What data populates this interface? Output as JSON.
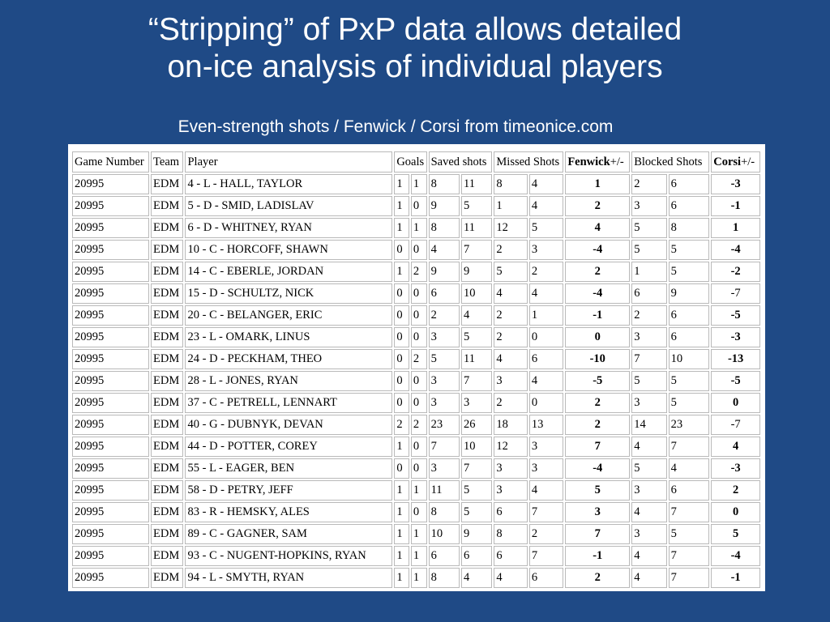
{
  "slide": {
    "title_line1": "“Stripping” of PxP data allows detailed",
    "title_line2": "on-ice analysis of individual players",
    "subtitle": "Even-strength shots / Fenwick / Corsi from timeonice.com"
  },
  "table": {
    "headers": {
      "game_number": "Game Number",
      "team": "Team",
      "player": "Player",
      "goals": "Goals",
      "saved_shots": "Saved shots",
      "missed_shots": "Missed Shots",
      "fenwick_bold": "Fenwick",
      "fenwick_suffix": "+/-",
      "blocked_shots": "Blocked Shots",
      "corsi_bold": "Corsi",
      "corsi_suffix": "+/-"
    },
    "rows": [
      [
        "20995",
        "EDM",
        "4 - L - HALL, TAYLOR",
        "1",
        "1",
        "8",
        "11",
        "8",
        "4",
        "1",
        "2",
        "6",
        "-3"
      ],
      [
        "20995",
        "EDM",
        "5 - D - SMID, LADISLAV",
        "1",
        "0",
        "9",
        "5",
        "1",
        "4",
        "2",
        "3",
        "6",
        "-1"
      ],
      [
        "20995",
        "EDM",
        "6 - D - WHITNEY, RYAN",
        "1",
        "1",
        "8",
        "11",
        "12",
        "5",
        "4",
        "5",
        "8",
        "1"
      ],
      [
        "20995",
        "EDM",
        "10 - C - HORCOFF, SHAWN",
        "0",
        "0",
        "4",
        "7",
        "2",
        "3",
        "-4",
        "5",
        "5",
        "-4"
      ],
      [
        "20995",
        "EDM",
        "14 - C - EBERLE, JORDAN",
        "1",
        "2",
        "9",
        "9",
        "5",
        "2",
        "2",
        "1",
        "5",
        "-2"
      ],
      [
        "20995",
        "EDM",
        "15 - D - SCHULTZ, NICK",
        "0",
        "0",
        "6",
        "10",
        "4",
        "4",
        "-4",
        "6",
        "9",
        "-7"
      ],
      [
        "20995",
        "EDM",
        "20 - C - BELANGER, ERIC",
        "0",
        "0",
        "2",
        "4",
        "2",
        "1",
        "-1",
        "2",
        "6",
        "-5"
      ],
      [
        "20995",
        "EDM",
        "23 - L - OMARK, LINUS",
        "0",
        "0",
        "3",
        "5",
        "2",
        "0",
        "0",
        "3",
        "6",
        "-3"
      ],
      [
        "20995",
        "EDM",
        "24 - D - PECKHAM, THEO",
        "0",
        "2",
        "5",
        "11",
        "4",
        "6",
        "-10",
        "7",
        "10",
        "-13"
      ],
      [
        "20995",
        "EDM",
        "28 - L - JONES, RYAN",
        "0",
        "0",
        "3",
        "7",
        "3",
        "4",
        "-5",
        "5",
        "5",
        "-5"
      ],
      [
        "20995",
        "EDM",
        "37 - C - PETRELL, LENNART",
        "0",
        "0",
        "3",
        "3",
        "2",
        "0",
        "2",
        "3",
        "5",
        "0"
      ],
      [
        "20995",
        "EDM",
        "40 - G - DUBNYK, DEVAN",
        "2",
        "2",
        "23",
        "26",
        "18",
        "13",
        "2",
        "14",
        "23",
        "-7"
      ],
      [
        "20995",
        "EDM",
        "44 - D - POTTER, COREY",
        "1",
        "0",
        "7",
        "10",
        "12",
        "3",
        "7",
        "4",
        "7",
        "4"
      ],
      [
        "20995",
        "EDM",
        "55 - L - EAGER, BEN",
        "0",
        "0",
        "3",
        "7",
        "3",
        "3",
        "-4",
        "5",
        "4",
        "-3"
      ],
      [
        "20995",
        "EDM",
        "58 - D - PETRY, JEFF",
        "1",
        "1",
        "11",
        "5",
        "3",
        "4",
        "5",
        "3",
        "6",
        "2"
      ],
      [
        "20995",
        "EDM",
        "83 - R - HEMSKY, ALES",
        "1",
        "0",
        "8",
        "5",
        "6",
        "7",
        "3",
        "4",
        "7",
        "0"
      ],
      [
        "20995",
        "EDM",
        "89 - C - GAGNER, SAM",
        "1",
        "1",
        "10",
        "9",
        "8",
        "2",
        "7",
        "3",
        "5",
        "5"
      ],
      [
        "20995",
        "EDM",
        "93 - C - NUGENT-HOPKINS, RYAN",
        "1",
        "1",
        "6",
        "6",
        "6",
        "7",
        "-1",
        "4",
        "7",
        "-4"
      ],
      [
        "20995",
        "EDM",
        "94 - L - SMYTH, RYAN",
        "1",
        "1",
        "8",
        "4",
        "4",
        "6",
        "2",
        "4",
        "7",
        "-1"
      ]
    ],
    "corsi_bold_flags": [
      true,
      true,
      true,
      true,
      true,
      false,
      true,
      true,
      true,
      true,
      true,
      false,
      true,
      true,
      true,
      true,
      true,
      true,
      true
    ]
  }
}
